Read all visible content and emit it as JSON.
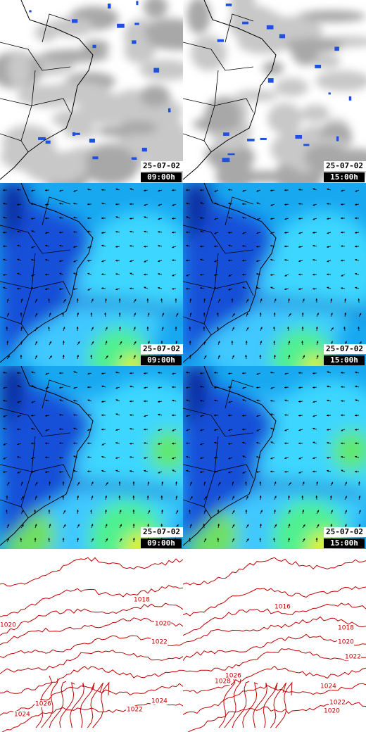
{
  "panels": [
    {
      "date": "25-07-02",
      "time": "09:00h"
    },
    {
      "date": "25-07-02",
      "time": "15:00h"
    },
    {
      "date": "25-07-02",
      "time": "09:00h"
    },
    {
      "date": "25-07-02",
      "time": "15:00h"
    },
    {
      "date": "25-07-02",
      "time": "09:00h"
    },
    {
      "date": "25-07-02",
      "time": "15:00h"
    }
  ],
  "isobars": {
    "left": [
      "1018",
      "1020",
      "1020",
      "1022",
      "1026",
      "1024",
      "1024",
      "1022"
    ],
    "right": [
      "1016",
      "1018",
      "1020",
      "1022",
      "1026",
      "1028",
      "1024",
      "1022",
      "1020"
    ]
  }
}
